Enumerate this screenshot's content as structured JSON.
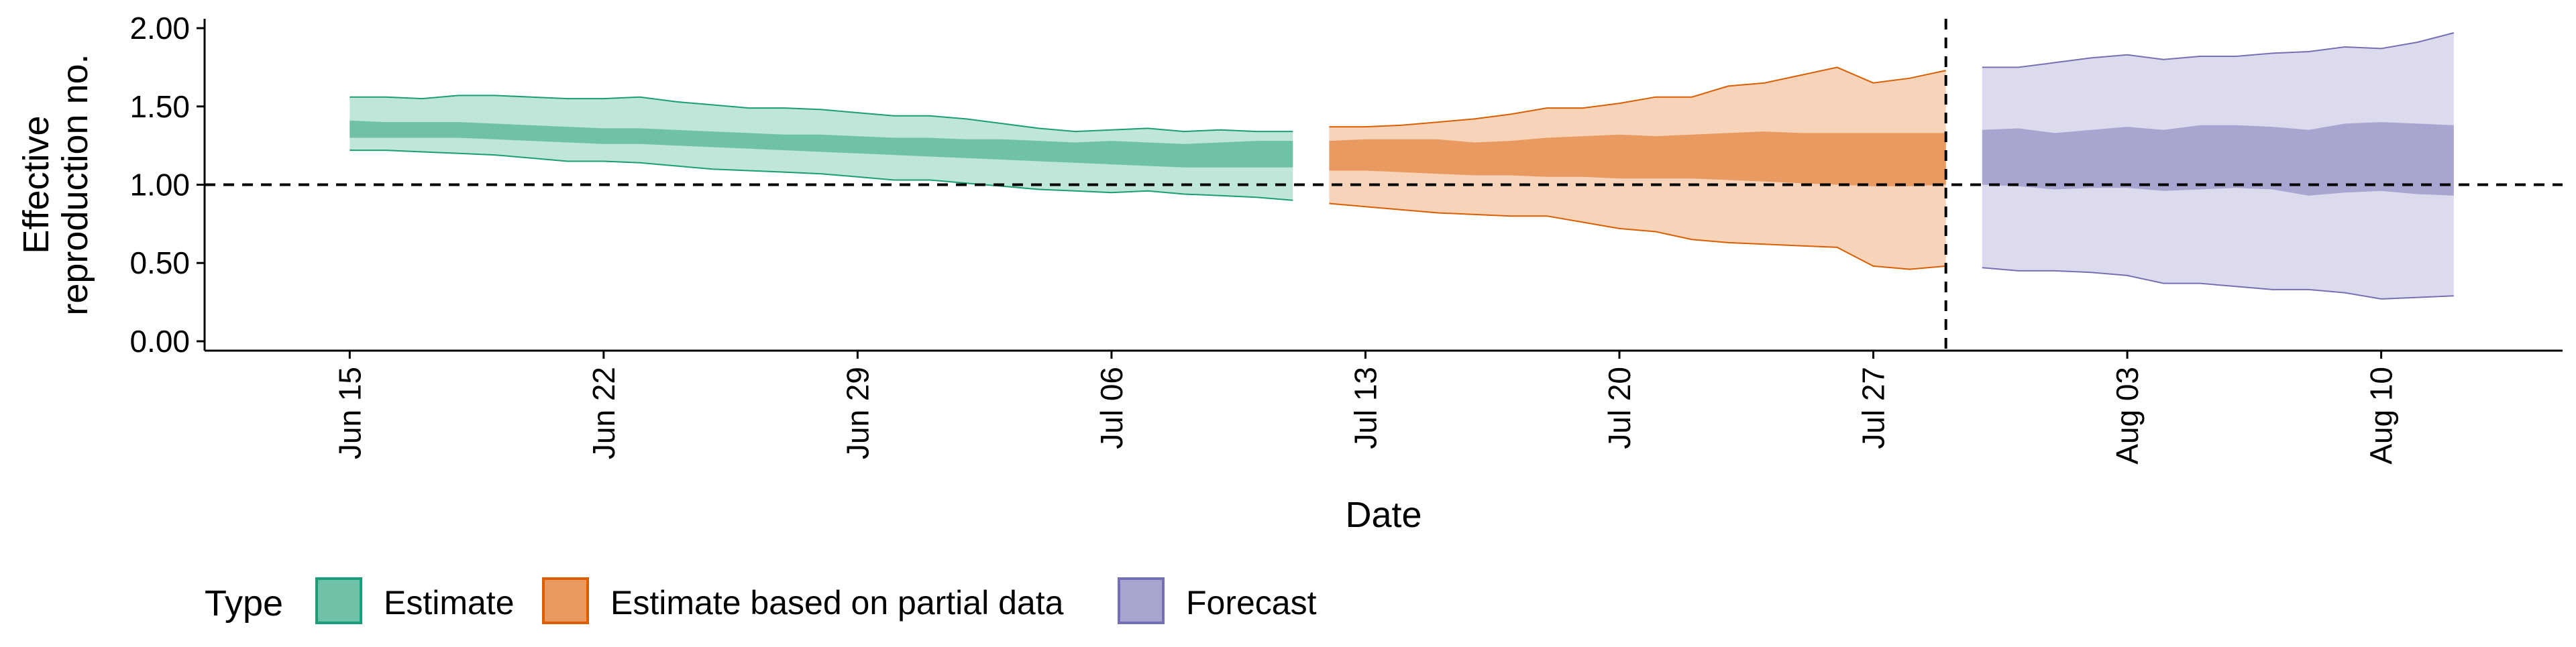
{
  "chart_data": {
    "type": "area",
    "ylabel_lines": [
      "Effective",
      "reproduction no."
    ],
    "xlabel": "Date",
    "ylim": [
      -0.06,
      2.06
    ],
    "yticks": [
      0.0,
      0.5,
      1.0,
      1.5,
      2.0
    ],
    "ytick_labels": [
      "0.00",
      "0.50",
      "1.00",
      "1.50",
      "2.00"
    ],
    "xlim": [
      "2020-06-11",
      "2020-08-15"
    ],
    "xticks": [
      "2020-06-15",
      "2020-06-22",
      "2020-06-29",
      "2020-07-06",
      "2020-07-13",
      "2020-07-20",
      "2020-07-27",
      "2020-08-03",
      "2020-08-10"
    ],
    "xtick_labels": [
      "Jun 15",
      "Jun 22",
      "Jun 29",
      "Jul 06",
      "Jul 13",
      "Jul 20",
      "Jul 27",
      "Aug 03",
      "Aug 10"
    ],
    "reference_hline": 1.0,
    "reference_vline": "2020-07-29",
    "legend": {
      "title": "Type",
      "placement": "bottom-left"
    },
    "series": [
      {
        "name": "Estimate",
        "fill_outer": "#bfe6d8",
        "fill_inner": "#6fc2a8",
        "line_color": "#1b9e77",
        "x": [
          "2020-06-15",
          "2020-06-16",
          "2020-06-17",
          "2020-06-18",
          "2020-06-19",
          "2020-06-20",
          "2020-06-21",
          "2020-06-22",
          "2020-06-23",
          "2020-06-24",
          "2020-06-25",
          "2020-06-26",
          "2020-06-27",
          "2020-06-28",
          "2020-06-29",
          "2020-06-30",
          "2020-07-01",
          "2020-07-02",
          "2020-07-03",
          "2020-07-04",
          "2020-07-05",
          "2020-07-06",
          "2020-07-07",
          "2020-07-08",
          "2020-07-09",
          "2020-07-10",
          "2020-07-11"
        ],
        "lower90": [
          1.22,
          1.22,
          1.21,
          1.2,
          1.19,
          1.17,
          1.15,
          1.15,
          1.14,
          1.12,
          1.1,
          1.09,
          1.08,
          1.07,
          1.05,
          1.03,
          1.03,
          1.01,
          0.99,
          0.97,
          0.96,
          0.95,
          0.96,
          0.94,
          0.93,
          0.92,
          0.9
        ],
        "lower50": [
          1.3,
          1.3,
          1.3,
          1.3,
          1.29,
          1.28,
          1.27,
          1.26,
          1.26,
          1.25,
          1.24,
          1.23,
          1.22,
          1.21,
          1.2,
          1.19,
          1.18,
          1.17,
          1.16,
          1.15,
          1.14,
          1.13,
          1.12,
          1.11,
          1.11,
          1.11,
          1.11
        ],
        "upper50": [
          1.41,
          1.4,
          1.4,
          1.4,
          1.39,
          1.38,
          1.37,
          1.36,
          1.36,
          1.35,
          1.34,
          1.33,
          1.32,
          1.32,
          1.31,
          1.3,
          1.3,
          1.29,
          1.29,
          1.28,
          1.27,
          1.28,
          1.27,
          1.26,
          1.27,
          1.28,
          1.28
        ],
        "upper90": [
          1.56,
          1.56,
          1.55,
          1.57,
          1.57,
          1.56,
          1.55,
          1.55,
          1.56,
          1.53,
          1.51,
          1.49,
          1.49,
          1.48,
          1.46,
          1.44,
          1.44,
          1.42,
          1.39,
          1.36,
          1.34,
          1.35,
          1.36,
          1.34,
          1.35,
          1.34,
          1.34
        ]
      },
      {
        "name": "Estimate based on partial data",
        "fill_outer": "#f6d3b9",
        "fill_inner": "#e89a61",
        "line_color": "#d95f02",
        "x": [
          "2020-07-12",
          "2020-07-13",
          "2020-07-14",
          "2020-07-15",
          "2020-07-16",
          "2020-07-17",
          "2020-07-18",
          "2020-07-19",
          "2020-07-20",
          "2020-07-21",
          "2020-07-22",
          "2020-07-23",
          "2020-07-24",
          "2020-07-25",
          "2020-07-26",
          "2020-07-27",
          "2020-07-28",
          "2020-07-29"
        ],
        "lower90": [
          0.88,
          0.86,
          0.84,
          0.82,
          0.81,
          0.8,
          0.8,
          0.76,
          0.72,
          0.7,
          0.65,
          0.63,
          0.62,
          0.61,
          0.6,
          0.48,
          0.46,
          0.48
        ],
        "lower50": [
          1.09,
          1.09,
          1.08,
          1.07,
          1.06,
          1.06,
          1.05,
          1.05,
          1.04,
          1.04,
          1.04,
          1.03,
          1.02,
          1.01,
          1.0,
          0.99,
          0.99,
          1.0
        ],
        "upper50": [
          1.28,
          1.29,
          1.29,
          1.29,
          1.27,
          1.28,
          1.3,
          1.31,
          1.32,
          1.31,
          1.32,
          1.33,
          1.34,
          1.33,
          1.33,
          1.33,
          1.33,
          1.33
        ],
        "upper90": [
          1.37,
          1.37,
          1.38,
          1.4,
          1.42,
          1.45,
          1.49,
          1.49,
          1.52,
          1.56,
          1.56,
          1.63,
          1.65,
          1.7,
          1.75,
          1.65,
          1.68,
          1.73
        ]
      },
      {
        "name": "Forecast",
        "fill_outer": "#dcdbed",
        "fill_inner": "#a8a5d1",
        "line_color": "#7570b3",
        "x": [
          "2020-07-30",
          "2020-07-31",
          "2020-08-01",
          "2020-08-02",
          "2020-08-03",
          "2020-08-04",
          "2020-08-05",
          "2020-08-06",
          "2020-08-07",
          "2020-08-08",
          "2020-08-09",
          "2020-08-10",
          "2020-08-11",
          "2020-08-12"
        ],
        "lower90": [
          0.47,
          0.45,
          0.45,
          0.44,
          0.42,
          0.37,
          0.37,
          0.35,
          0.33,
          0.33,
          0.31,
          0.27,
          0.28,
          0.29
        ],
        "lower50": [
          1.0,
          0.99,
          0.97,
          0.98,
          0.98,
          0.96,
          0.97,
          0.98,
          0.97,
          0.93,
          0.95,
          0.96,
          0.94,
          0.93
        ],
        "upper50": [
          1.35,
          1.36,
          1.33,
          1.35,
          1.37,
          1.35,
          1.38,
          1.38,
          1.37,
          1.35,
          1.39,
          1.4,
          1.39,
          1.38
        ],
        "upper90": [
          1.75,
          1.75,
          1.78,
          1.81,
          1.83,
          1.8,
          1.82,
          1.82,
          1.84,
          1.85,
          1.88,
          1.87,
          1.91,
          1.97
        ]
      }
    ]
  }
}
